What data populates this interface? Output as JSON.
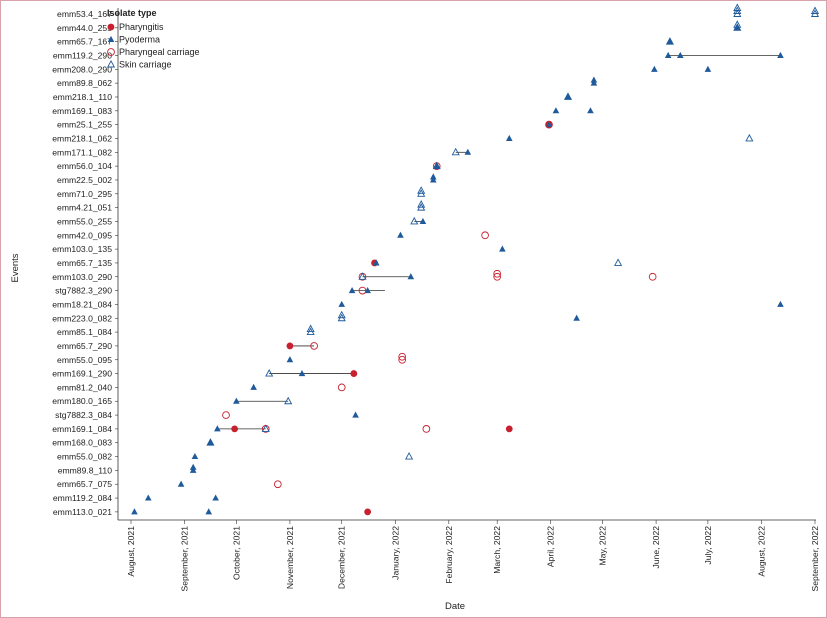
{
  "chart_data": {
    "type": "scatter",
    "xlabel": "Date",
    "ylabel": "Events",
    "legend": {
      "title": "Isolate type",
      "placement": "top-left",
      "entries": [
        {
          "key": "pharyngitis",
          "label": "Pharyngitis"
        },
        {
          "key": "pyoderma",
          "label": "Pyoderma"
        },
        {
          "key": "pharyngeal",
          "label": "Pharyngeal carriage"
        },
        {
          "key": "skin",
          "label": "Skin carriage"
        }
      ]
    },
    "colors": {
      "red": "#c8202e",
      "blue": "#1f5a9b",
      "grid_line": "#333333"
    },
    "xlim": [
      "2021-07-20",
      "2022-09-01"
    ],
    "x_ticks": [
      {
        "date": "2021-08-01",
        "label": "August, 2021"
      },
      {
        "date": "2021-09-01",
        "label": "September, 2021"
      },
      {
        "date": "2021-10-01",
        "label": "October, 2021"
      },
      {
        "date": "2021-11-01",
        "label": "November, 2021"
      },
      {
        "date": "2021-12-01",
        "label": "December, 2021"
      },
      {
        "date": "2022-01-01",
        "label": "January, 2022"
      },
      {
        "date": "2022-02-01",
        "label": "February, 2022"
      },
      {
        "date": "2022-03-01",
        "label": "March, 2022"
      },
      {
        "date": "2022-04-01",
        "label": "April, 2022"
      },
      {
        "date": "2022-05-01",
        "label": "May, 2022"
      },
      {
        "date": "2022-06-01",
        "label": "June, 2022"
      },
      {
        "date": "2022-07-01",
        "label": "July, 2022"
      },
      {
        "date": "2022-08-01",
        "label": "August, 2022"
      },
      {
        "date": "2022-09-01",
        "label": "September, 2022"
      }
    ],
    "events": [
      "emm113.0_021",
      "emm119.2_084",
      "emm65.7_075",
      "emm89.8_110",
      "emm55.0_082",
      "emm168.0_083",
      "emm169.1_084",
      "stg7882.3_084",
      "emm180.0_165",
      "emm81.2_040",
      "emm169.1_290",
      "emm55.0_095",
      "emm65.7_290",
      "emm85.1_084",
      "emm223.0_082",
      "emm18.21_084",
      "stg7882.3_290",
      "emm103.0_290",
      "emm65.7_135",
      "emm103.0_135",
      "emm42.0_095",
      "emm55.0_255",
      "emm4.21_051",
      "emm71.0_295",
      "emm22.5_002",
      "emm56.0_104",
      "emm171.1_082",
      "emm218.1_062",
      "emm25.1_255",
      "emm169.1_083",
      "emm218.1_110",
      "emm89.8_062",
      "emm208.0_290",
      "emm119.2_290",
      "emm65.7_167",
      "emm44.0_255",
      "emm53.4_167"
    ],
    "links": [
      {
        "event": "emm169.1_084",
        "start": "2021-09-20",
        "end": "2021-10-18"
      },
      {
        "event": "emm180.0_165",
        "start": "2021-10-01",
        "end": "2021-10-31"
      },
      {
        "event": "emm169.1_290",
        "start": "2021-10-20",
        "end": "2021-12-08"
      },
      {
        "event": "emm65.7_290",
        "start": "2021-11-01",
        "end": "2021-11-15"
      },
      {
        "event": "stg7882.3_290",
        "start": "2021-12-07",
        "end": "2021-12-26"
      },
      {
        "event": "emm103.0_290",
        "start": "2021-12-13",
        "end": "2022-01-10"
      },
      {
        "event": "emm55.0_255",
        "start": "2022-01-12",
        "end": "2022-01-17"
      },
      {
        "event": "emm171.1_082",
        "start": "2022-02-05",
        "end": "2022-02-12"
      },
      {
        "event": "emm119.2_290",
        "start": "2022-06-08",
        "end": "2022-08-12"
      }
    ],
    "series": [
      {
        "name": "Pharyngitis",
        "key": "pharyngitis",
        "points": [
          {
            "event": "emm113.0_021",
            "x": "2021-12-16"
          },
          {
            "event": "emm169.1_084",
            "x": "2021-09-30"
          },
          {
            "event": "emm169.1_084",
            "x": "2022-03-08"
          },
          {
            "event": "emm169.1_290",
            "x": "2021-12-08"
          },
          {
            "event": "emm65.7_290",
            "x": "2021-11-01"
          },
          {
            "event": "emm65.7_135",
            "x": "2021-12-20"
          },
          {
            "event": "emm25.1_255",
            "x": "2022-03-31"
          }
        ]
      },
      {
        "name": "Pyoderma",
        "key": "pyoderma",
        "points": [
          {
            "event": "emm113.0_021",
            "x": "2021-08-03"
          },
          {
            "event": "emm113.0_021",
            "x": "2021-09-15"
          },
          {
            "event": "emm119.2_084",
            "x": "2021-08-11"
          },
          {
            "event": "emm119.2_084",
            "x": "2021-09-19"
          },
          {
            "event": "emm65.7_075",
            "x": "2021-08-30"
          },
          {
            "event": "emm89.8_110",
            "x": "2021-09-06"
          },
          {
            "event": "emm89.8_110",
            "x": "2021-09-06"
          },
          {
            "event": "emm55.0_082",
            "x": "2021-09-07"
          },
          {
            "event": "emm168.0_083",
            "x": "2021-09-16"
          },
          {
            "event": "emm169.1_084",
            "x": "2021-09-20"
          },
          {
            "event": "stg7882.3_084",
            "x": "2021-12-09"
          },
          {
            "event": "emm180.0_165",
            "x": "2021-10-01"
          },
          {
            "event": "emm81.2_040",
            "x": "2021-10-11"
          },
          {
            "event": "emm169.1_290",
            "x": "2021-11-08"
          },
          {
            "event": "emm55.0_095",
            "x": "2021-11-01"
          },
          {
            "event": "emm223.0_082",
            "x": "2022-04-16"
          },
          {
            "event": "emm18.21_084",
            "x": "2021-12-01"
          },
          {
            "event": "emm18.21_084",
            "x": "2022-08-12"
          },
          {
            "event": "stg7882.3_290",
            "x": "2021-12-07"
          },
          {
            "event": "stg7882.3_290",
            "x": "2021-12-16"
          },
          {
            "event": "emm103.0_290",
            "x": "2022-01-10"
          },
          {
            "event": "emm65.7_135",
            "x": "2021-12-21"
          },
          {
            "event": "emm103.0_135",
            "x": "2022-03-04"
          },
          {
            "event": "emm42.0_095",
            "x": "2022-01-04"
          },
          {
            "event": "emm55.0_255",
            "x": "2022-01-17"
          },
          {
            "event": "emm22.5_002",
            "x": "2022-01-23"
          },
          {
            "event": "emm22.5_002",
            "x": "2022-01-23"
          },
          {
            "event": "emm56.0_104",
            "x": "2022-01-25"
          },
          {
            "event": "emm171.1_082",
            "x": "2022-02-12"
          },
          {
            "event": "emm218.1_062",
            "x": "2022-03-08"
          },
          {
            "event": "emm25.1_255",
            "x": "2022-03-31"
          },
          {
            "event": "emm169.1_083",
            "x": "2022-04-04"
          },
          {
            "event": "emm169.1_083",
            "x": "2022-04-24"
          },
          {
            "event": "emm218.1_110",
            "x": "2022-04-11"
          },
          {
            "event": "emm89.8_062",
            "x": "2022-04-26"
          },
          {
            "event": "emm89.8_062",
            "x": "2022-04-26"
          },
          {
            "event": "emm208.0_290",
            "x": "2022-05-31"
          },
          {
            "event": "emm208.0_290",
            "x": "2022-07-01"
          },
          {
            "event": "emm119.2_290",
            "x": "2022-06-08"
          },
          {
            "event": "emm119.2_290",
            "x": "2022-06-15"
          },
          {
            "event": "emm119.2_290",
            "x": "2022-08-12"
          },
          {
            "event": "emm65.7_167",
            "x": "2022-06-09"
          },
          {
            "event": "emm44.0_255",
            "x": "2022-07-18"
          }
        ]
      },
      {
        "name": "Pharyngeal carriage",
        "key": "pharyngeal",
        "points": [
          {
            "event": "emm65.7_075",
            "x": "2021-10-25"
          },
          {
            "event": "emm169.1_084",
            "x": "2021-10-18"
          },
          {
            "event": "emm169.1_084",
            "x": "2022-01-19"
          },
          {
            "event": "stg7882.3_084",
            "x": "2021-09-25"
          },
          {
            "event": "emm81.2_040",
            "x": "2021-12-01"
          },
          {
            "event": "emm55.0_095",
            "x": "2022-01-05"
          },
          {
            "event": "emm55.0_095",
            "x": "2022-01-05"
          },
          {
            "event": "emm65.7_290",
            "x": "2021-11-15"
          },
          {
            "event": "stg7882.3_290",
            "x": "2021-12-13"
          },
          {
            "event": "emm103.0_290",
            "x": "2021-12-13"
          },
          {
            "event": "emm103.0_290",
            "x": "2022-03-01"
          },
          {
            "event": "emm103.0_290",
            "x": "2022-03-01"
          },
          {
            "event": "emm103.0_290",
            "x": "2022-05-30"
          },
          {
            "event": "emm42.0_095",
            "x": "2022-02-22"
          },
          {
            "event": "emm56.0_104",
            "x": "2022-01-25"
          },
          {
            "event": "emm25.1_255",
            "x": "2022-03-31"
          }
        ]
      },
      {
        "name": "Skin carriage",
        "key": "skin",
        "points": [
          {
            "event": "emm55.0_082",
            "x": "2022-01-09"
          },
          {
            "event": "emm168.0_083",
            "x": "2021-09-16"
          },
          {
            "event": "emm169.1_084",
            "x": "2021-10-18"
          },
          {
            "event": "emm180.0_165",
            "x": "2021-10-31"
          },
          {
            "event": "emm169.1_290",
            "x": "2021-10-20"
          },
          {
            "event": "emm85.1_084",
            "x": "2021-11-13"
          },
          {
            "event": "emm85.1_084",
            "x": "2021-11-13"
          },
          {
            "event": "emm223.0_082",
            "x": "2021-12-01"
          },
          {
            "event": "emm223.0_082",
            "x": "2021-12-01"
          },
          {
            "event": "emm103.0_290",
            "x": "2021-12-13"
          },
          {
            "event": "emm65.7_135",
            "x": "2022-05-10"
          },
          {
            "event": "emm55.0_255",
            "x": "2022-01-12"
          },
          {
            "event": "emm4.21_051",
            "x": "2022-01-16"
          },
          {
            "event": "emm4.21_051",
            "x": "2022-01-16"
          },
          {
            "event": "emm71.0_295",
            "x": "2022-01-16"
          },
          {
            "event": "emm71.0_295",
            "x": "2022-01-16"
          },
          {
            "event": "emm56.0_104",
            "x": "2022-01-25"
          },
          {
            "event": "emm171.1_082",
            "x": "2022-02-05"
          },
          {
            "event": "emm218.1_062",
            "x": "2022-07-25"
          },
          {
            "event": "emm218.1_110",
            "x": "2022-04-11"
          },
          {
            "event": "emm65.7_167",
            "x": "2022-06-09"
          },
          {
            "event": "emm44.0_255",
            "x": "2022-07-18"
          },
          {
            "event": "emm44.0_255",
            "x": "2022-07-18"
          },
          {
            "event": "emm53.4_167",
            "x": "2022-07-18"
          },
          {
            "event": "emm53.4_167",
            "x": "2022-07-18"
          },
          {
            "event": "emm53.4_167",
            "x": "2022-07-18"
          },
          {
            "event": "emm53.4_167",
            "x": "2022-09-01"
          },
          {
            "event": "emm53.4_167",
            "x": "2022-09-01"
          }
        ]
      }
    ]
  }
}
